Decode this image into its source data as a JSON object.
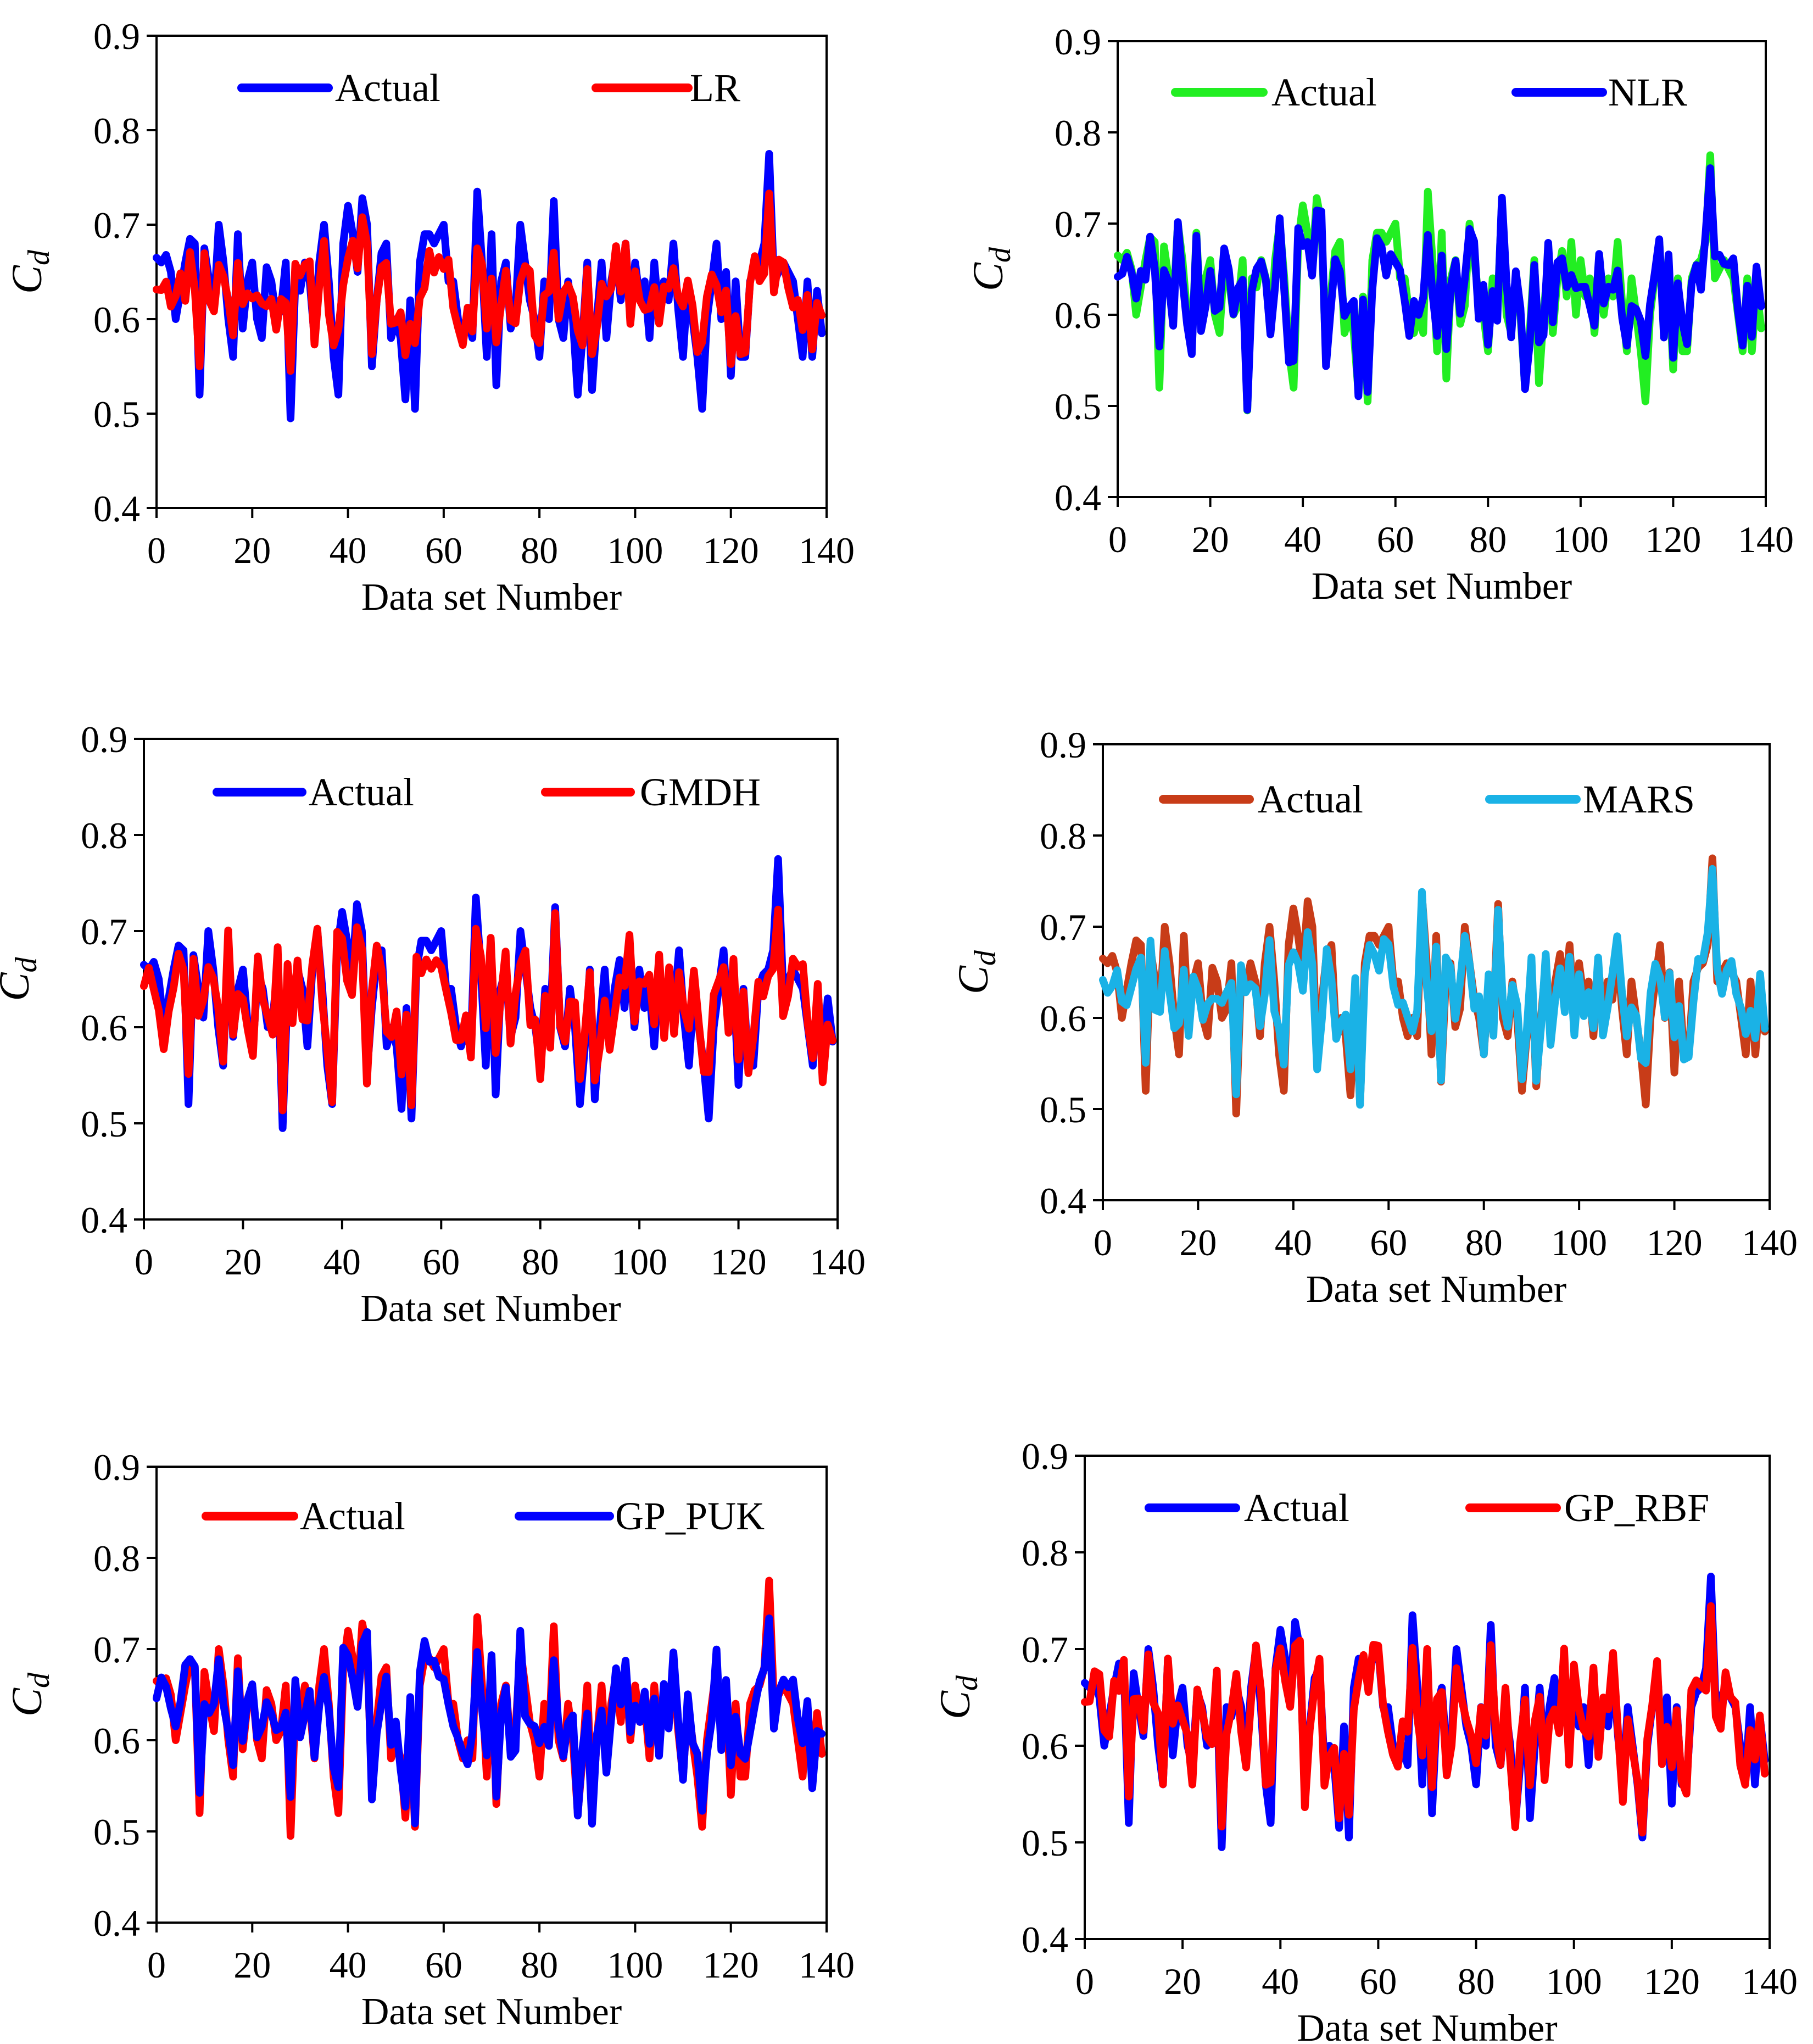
{
  "figure": {
    "description_free": true
  },
  "chart_data": [
    {
      "type": "line",
      "panel": "top-left",
      "xlabel": "Data set Number",
      "ylabel": "C",
      "ylabel_sub": "d",
      "xlim": [
        0,
        140
      ],
      "ylim": [
        0.4,
        0.9
      ],
      "xticks": [
        "0",
        "20",
        "40",
        "60",
        "80",
        "100",
        "120",
        "140"
      ],
      "yticks": [
        "0.4",
        "0.5",
        "0.6",
        "0.7",
        "0.8",
        "0.9"
      ],
      "grid": false,
      "legend_position": "top",
      "series": [
        {
          "name": "Actual",
          "color": "#0000ff",
          "role": "actual"
        },
        {
          "name": "LR",
          "color": "#ff0000",
          "role": "model",
          "seed": 11,
          "spread": 0.55
        }
      ]
    },
    {
      "type": "line",
      "panel": "top-right",
      "xlabel": "Data set Number",
      "ylabel": "C",
      "ylabel_sub": "d",
      "xlim": [
        0,
        140
      ],
      "ylim": [
        0.4,
        0.9
      ],
      "xticks": [
        "0",
        "20",
        "40",
        "60",
        "80",
        "100",
        "120",
        "140"
      ],
      "yticks": [
        "0.4",
        "0.5",
        "0.6",
        "0.7",
        "0.8",
        "0.9"
      ],
      "grid": false,
      "legend_position": "top",
      "series": [
        {
          "name": "Actual",
          "color": "#22ee22",
          "role": "actual"
        },
        {
          "name": "NLR",
          "color": "#0000ff",
          "role": "model",
          "seed": 23,
          "spread": 0.8
        }
      ]
    },
    {
      "type": "line",
      "panel": "middle-left",
      "xlabel": "Data set Number",
      "ylabel": "C",
      "ylabel_sub": "d",
      "xlim": [
        0,
        140
      ],
      "ylim": [
        0.4,
        0.9
      ],
      "xticks": [
        "0",
        "20",
        "40",
        "60",
        "80",
        "100",
        "120",
        "140"
      ],
      "yticks": [
        "0.4",
        "0.5",
        "0.6",
        "0.7",
        "0.8",
        "0.9"
      ],
      "grid": false,
      "legend_position": "top",
      "series": [
        {
          "name": "Actual",
          "color": "#0000ff",
          "role": "actual"
        },
        {
          "name": "GMDH",
          "color": "#ff0000",
          "role": "model",
          "seed": 37,
          "spread": 0.82
        }
      ]
    },
    {
      "type": "line",
      "panel": "middle-right",
      "xlabel": "Data set Number",
      "ylabel": "C",
      "ylabel_sub": "d",
      "xlim": [
        0,
        140
      ],
      "ylim": [
        0.4,
        0.9
      ],
      "xticks": [
        "0",
        "20",
        "40",
        "60",
        "80",
        "100",
        "120",
        "140"
      ],
      "yticks": [
        "0.4",
        "0.5",
        "0.6",
        "0.7",
        "0.8",
        "0.9"
      ],
      "grid": false,
      "legend_position": "top",
      "series": [
        {
          "name": "Actual",
          "color": "#c83c18",
          "role": "actual"
        },
        {
          "name": "MARS",
          "color": "#1ab2e6",
          "role": "model",
          "seed": 53,
          "spread": 0.78
        }
      ]
    },
    {
      "type": "line",
      "panel": "bottom-left",
      "xlabel": "Data set Number",
      "ylabel": "C",
      "ylabel_sub": "d",
      "xlim": [
        0,
        140
      ],
      "ylim": [
        0.4,
        0.9
      ],
      "xticks": [
        "0",
        "20",
        "40",
        "60",
        "80",
        "100",
        "120",
        "140"
      ],
      "yticks": [
        "0.4",
        "0.5",
        "0.6",
        "0.7",
        "0.8",
        "0.9"
      ],
      "grid": false,
      "legend_position": "top",
      "series": [
        {
          "name": "Actual",
          "color": "#ff0000",
          "role": "actual"
        },
        {
          "name": "GP_PUK",
          "color": "#0000ff",
          "role": "model",
          "seed": 71,
          "spread": 0.88
        }
      ]
    },
    {
      "type": "line",
      "panel": "bottom-right",
      "xlabel": "Data set Number",
      "ylabel": "C",
      "ylabel_sub": "d",
      "xlim": [
        0,
        140
      ],
      "ylim": [
        0.4,
        0.9
      ],
      "xticks": [
        "0",
        "20",
        "40",
        "60",
        "80",
        "100",
        "120",
        "140"
      ],
      "yticks": [
        "0.4",
        "0.5",
        "0.6",
        "0.7",
        "0.8",
        "0.9"
      ],
      "grid": false,
      "legend_position": "top",
      "series": [
        {
          "name": "Actual",
          "color": "#0000ff",
          "role": "actual"
        },
        {
          "name": "GP_RBF",
          "color": "#ff0000",
          "role": "model",
          "seed": 89,
          "spread": 0.85
        }
      ]
    }
  ],
  "actual_values": [
    0.665,
    0.66,
    0.668,
    0.65,
    0.6,
    0.63,
    0.66,
    0.685,
    0.68,
    0.52,
    0.675,
    0.64,
    0.61,
    0.7,
    0.66,
    0.6,
    0.56,
    0.69,
    0.59,
    0.64,
    0.66,
    0.6,
    0.58,
    0.655,
    0.64,
    0.6,
    0.61,
    0.66,
    0.495,
    0.64,
    0.63,
    0.66,
    0.64,
    0.58,
    0.66,
    0.7,
    0.64,
    0.56,
    0.52,
    0.68,
    0.72,
    0.69,
    0.65,
    0.728,
    0.7,
    0.55,
    0.62,
    0.67,
    0.68,
    0.58,
    0.6,
    0.58,
    0.515,
    0.62,
    0.505,
    0.66,
    0.69,
    0.69,
    0.68,
    0.69,
    0.7,
    0.64,
    0.64,
    0.6,
    0.58,
    0.6,
    0.58,
    0.735,
    0.66,
    0.56,
    0.69,
    0.53,
    0.64,
    0.66,
    0.59,
    0.61,
    0.7,
    0.66,
    0.62,
    0.6,
    0.56,
    0.64,
    0.6,
    0.725,
    0.6,
    0.58,
    0.64,
    0.6,
    0.52,
    0.58,
    0.66,
    0.525,
    0.6,
    0.66,
    0.58,
    0.64,
    0.67,
    0.62,
    0.68,
    0.6,
    0.66,
    0.62,
    0.64,
    0.58,
    0.66,
    0.6,
    0.64,
    0.62,
    0.68,
    0.61,
    0.56,
    0.64,
    0.6,
    0.56,
    0.505,
    0.6,
    0.64,
    0.68,
    0.6,
    0.65,
    0.54,
    0.64,
    0.56,
    0.56,
    0.64,
    0.655,
    0.66,
    0.68,
    0.775,
    0.64,
    0.65,
    0.66,
    0.65,
    0.64,
    0.6,
    0.56,
    0.64,
    0.56,
    0.63,
    0.585
  ]
}
